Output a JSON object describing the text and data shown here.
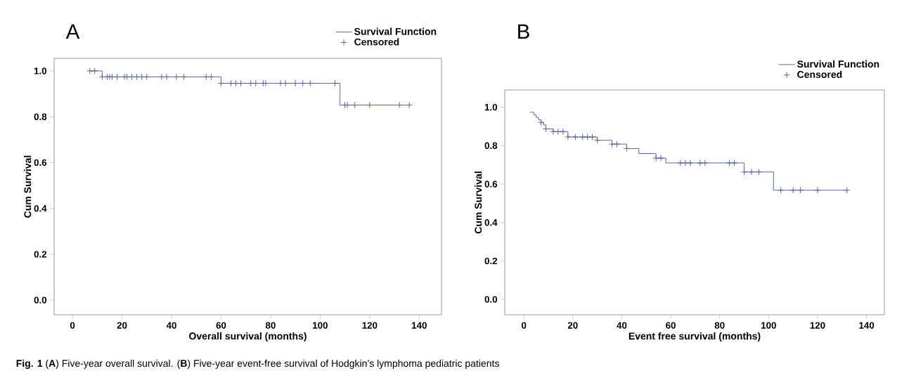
{
  "chart_data": [
    {
      "type": "step",
      "title": "A",
      "xlabel": "Overall survival (months)",
      "ylabel": "Cum Survival",
      "xlim": [
        -7.4,
        149
      ],
      "ylim": [
        -0.064,
        1.055
      ],
      "xticks": [
        0,
        20,
        40,
        60,
        80,
        100,
        120,
        140
      ],
      "yticks": [
        {
          "value": 0,
          "label": "0.0"
        },
        {
          "value": 0.2,
          "label": "0.2"
        },
        {
          "value": 0.4,
          "label": "0.4"
        },
        {
          "value": 0.6,
          "label": "0.6"
        },
        {
          "value": 0.8,
          "label": "0.8"
        },
        {
          "value": 1,
          "label": "1.0"
        }
      ],
      "legend": "top right",
      "grid": false,
      "annotations": [
        "**Fig. 1**  (**A**) Five-year overall survival. (**B**) Five-year event-free survival of Hodgkin’s lymphoma pediatric patients"
      ],
      "series": [
        {
          "name": "Survival Function",
          "color": "#4a5aa8",
          "x": [
            7,
            12,
            60,
            108,
            136
          ],
          "values": [
            1.0,
            0.974,
            0.946,
            0.851,
            0.851
          ]
        },
        {
          "name": "Censored",
          "type": "scatter",
          "marker": "cross",
          "color": "#4a5aa8",
          "x": [
            7,
            9,
            12,
            14,
            15,
            16,
            18,
            21,
            22,
            24,
            26,
            28,
            30,
            36,
            38,
            42,
            45,
            54,
            56,
            60,
            64,
            66,
            68,
            72,
            74,
            77,
            78,
            84,
            86,
            90,
            93,
            96,
            106,
            110,
            111,
            114,
            120,
            132,
            136
          ],
          "values": [
            1.0,
            1.0,
            0.974,
            0.974,
            0.974,
            0.974,
            0.974,
            0.974,
            0.974,
            0.974,
            0.974,
            0.974,
            0.974,
            0.974,
            0.974,
            0.974,
            0.974,
            0.974,
            0.974,
            0.946,
            0.946,
            0.946,
            0.946,
            0.946,
            0.946,
            0.946,
            0.946,
            0.946,
            0.946,
            0.946,
            0.946,
            0.946,
            0.946,
            0.851,
            0.851,
            0.851,
            0.851,
            0.851,
            0.851
          ]
        }
      ]
    },
    {
      "type": "step",
      "title": "B",
      "xlabel": "Event free survival (months)",
      "ylabel": "Cum Survival",
      "xlim": [
        -7.8,
        147.3
      ],
      "ylim": [
        -0.08,
        1.09
      ],
      "xticks": [
        0,
        20,
        40,
        60,
        80,
        100,
        120,
        140
      ],
      "yticks": [
        {
          "value": 0,
          "label": "0.0"
        },
        {
          "value": 0.2,
          "label": "0.2"
        },
        {
          "value": 0.4,
          "label": "0.4"
        },
        {
          "value": 0.6,
          "label": "0.6"
        },
        {
          "value": 0.8,
          "label": "0.8"
        },
        {
          "value": 1,
          "label": "1.0"
        }
      ],
      "legend": "top right",
      "grid": false,
      "series": [
        {
          "name": "Survival Function",
          "color": "#4a5aa8",
          "x": [
            2.5,
            4,
            5,
            6,
            7,
            8,
            9,
            12,
            18,
            30,
            36,
            42,
            47,
            54,
            58,
            90,
            102,
            132
          ],
          "values": [
            0.974,
            0.961,
            0.947,
            0.934,
            0.921,
            0.908,
            0.887,
            0.873,
            0.845,
            0.828,
            0.808,
            0.785,
            0.759,
            0.735,
            0.71,
            0.663,
            0.568,
            0.568
          ]
        },
        {
          "name": "Censored",
          "type": "scatter",
          "marker": "cross",
          "color": "#4a5aa8",
          "x": [
            7,
            9,
            12,
            14,
            16,
            18,
            21,
            24,
            26,
            28,
            30,
            36,
            38,
            42,
            54,
            56,
            64,
            66,
            68,
            72,
            74,
            84,
            86,
            90,
            93,
            96,
            105,
            110,
            113,
            120,
            132
          ],
          "values": [
            0.921,
            0.887,
            0.873,
            0.873,
            0.873,
            0.845,
            0.845,
            0.845,
            0.845,
            0.845,
            0.828,
            0.808,
            0.808,
            0.785,
            0.735,
            0.735,
            0.71,
            0.71,
            0.71,
            0.71,
            0.71,
            0.71,
            0.71,
            0.663,
            0.663,
            0.663,
            0.568,
            0.568,
            0.568,
            0.568,
            0.568
          ]
        }
      ]
    }
  ]
}
